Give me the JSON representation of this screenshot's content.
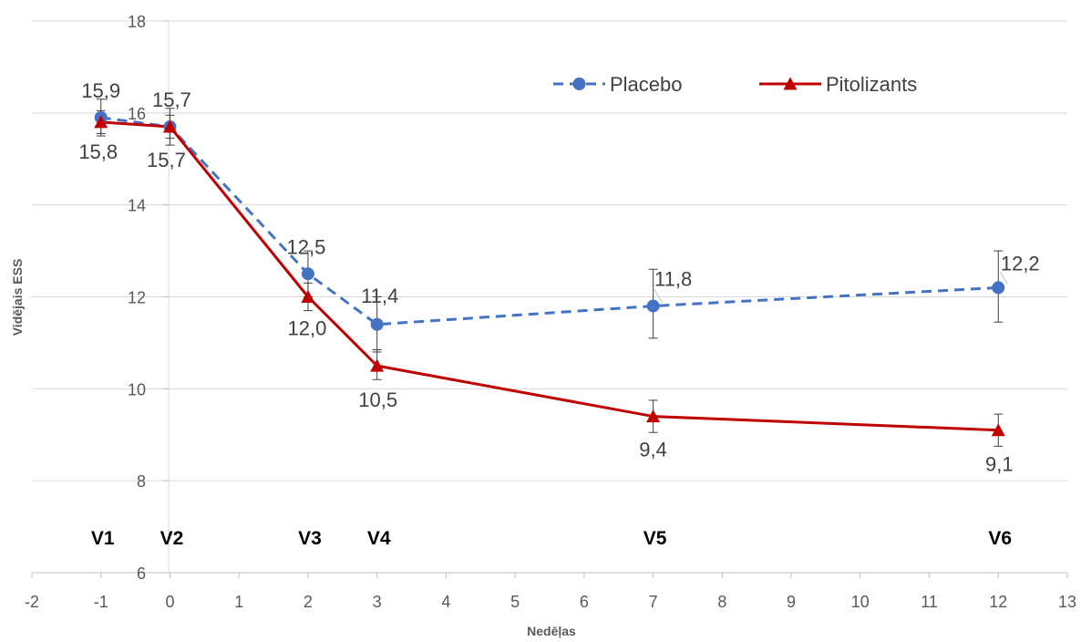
{
  "chart_data": {
    "type": "line",
    "xlabel": "Nedēļas",
    "ylabel": "Vidējais ESS",
    "xlim": [
      -2,
      13
    ],
    "ylim": [
      6,
      18
    ],
    "x_ticks": [
      -2,
      -1,
      0,
      1,
      2,
      3,
      4,
      5,
      6,
      7,
      8,
      9,
      10,
      11,
      12,
      13
    ],
    "y_ticks": [
      6,
      8,
      10,
      12,
      14,
      16,
      18
    ],
    "grid": "horizontal",
    "legend_position": "top-right",
    "x": [
      -1,
      0,
      2,
      3,
      7,
      12
    ],
    "visits": [
      {
        "label": "V1",
        "x": -1
      },
      {
        "label": "V2",
        "x": 0
      },
      {
        "label": "V3",
        "x": 2
      },
      {
        "label": "V4",
        "x": 3
      },
      {
        "label": "V5",
        "x": 7
      },
      {
        "label": "V6",
        "x": 12
      }
    ],
    "series": [
      {
        "name": "Placebo",
        "color": "#4472C4",
        "line_style": "dashed",
        "marker": "circle",
        "values": [
          15.9,
          15.7,
          12.5,
          11.4,
          11.8,
          12.2
        ],
        "labels": [
          "15,9",
          "15,7",
          "12,5",
          "11,4",
          "11,8",
          "12,2"
        ],
        "error_low": [
          15.5,
          15.3,
          12.0,
          10.8,
          11.1,
          11.45
        ],
        "error_high": [
          16.3,
          16.1,
          13.0,
          12.0,
          12.6,
          13.0
        ]
      },
      {
        "name": "Pitolizants",
        "color": "#C00000",
        "line_style": "solid",
        "marker": "triangle",
        "values": [
          15.8,
          15.7,
          12.0,
          10.5,
          9.4,
          9.1
        ],
        "labels": [
          "15,8",
          "15,7",
          "12,0",
          "10,5",
          "9,4",
          "9,1"
        ],
        "error_low": [
          15.55,
          15.45,
          11.7,
          10.2,
          9.05,
          8.75
        ],
        "error_high": [
          16.05,
          15.95,
          12.3,
          10.85,
          9.75,
          9.45
        ]
      }
    ]
  }
}
